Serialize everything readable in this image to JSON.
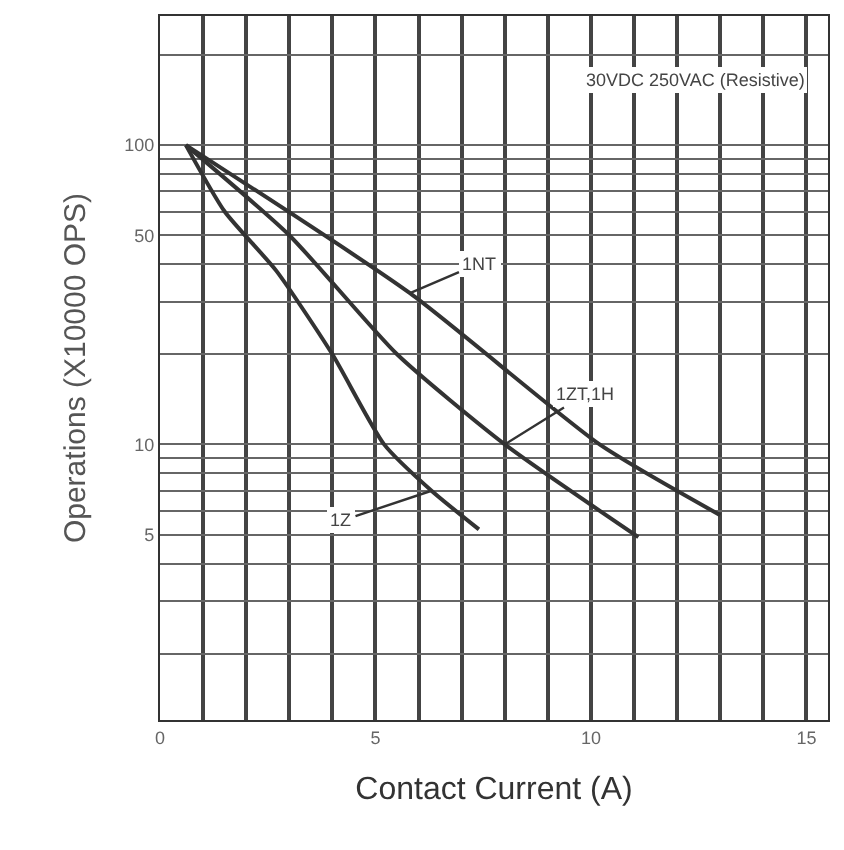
{
  "chart_data": {
    "type": "line",
    "xlabel": "Contact Current (A)",
    "ylabel": "Operations (X10000 OPS)",
    "series": [
      {
        "color": "#333333",
        "x": [
          0.6,
          1.5,
          2.7,
          4.0,
          5.2,
          6.3,
          7.4
        ],
        "values": [
          100,
          60,
          38,
          20,
          10,
          7,
          5.2
        ]
      },
      {
        "color": "#333333",
        "x": [
          0.6,
          3.0,
          5.5,
          8.0,
          11.1
        ],
        "values": [
          100,
          50,
          20,
          10,
          4.9
        ]
      },
      {
        "color": "#333333",
        "x": [
          0.6,
          5.8,
          10.2,
          13.0
        ],
        "values": [
          100,
          32,
          10,
          5.8
        ]
      }
    ],
    "annotations": [
      "30VDC 250VAC (Resistive)",
      {
        "text": "1Z",
        "x": 6.3,
        "y": 7
      },
      {
        "text": "1ZT,1H",
        "x": 8.0,
        "y": 10
      },
      {
        "text": "1NT",
        "x": 5.8,
        "y": 32
      }
    ],
    "log": "y",
    "xlim": [
      0,
      15.5
    ],
    "ylim": [
      1.2,
      270
    ],
    "xticks": [
      0,
      {
        "value": 1,
        "label": null
      },
      {
        "value": 2,
        "label": null
      },
      {
        "value": 3,
        "label": null
      },
      {
        "value": 4,
        "label": null
      },
      5,
      {
        "value": 6,
        "label": null
      },
      {
        "value": 7,
        "label": null
      },
      {
        "value": 8,
        "label": null
      },
      {
        "value": 9,
        "label": null
      },
      10,
      {
        "value": 11,
        "label": null
      },
      {
        "value": 12,
        "label": null
      },
      {
        "value": 13,
        "label": null
      },
      {
        "value": 14,
        "label": null
      },
      15
    ],
    "yticks": [
      {
        "value": 2,
        "label": null
      },
      {
        "value": 3,
        "label": null
      },
      {
        "value": 4,
        "label": null
      },
      5,
      {
        "value": 6,
        "label": null
      },
      {
        "value": 7,
        "label": null
      },
      {
        "value": 8,
        "label": null
      },
      {
        "value": 9,
        "label": null
      },
      10,
      {
        "value": 20,
        "label": null
      },
      {
        "value": 30,
        "label": null
      },
      {
        "value": 40,
        "label": null
      },
      50,
      {
        "value": 60,
        "label": null
      },
      {
        "value": 70,
        "label": null
      },
      {
        "value": 80,
        "label": null
      },
      {
        "value": 90,
        "label": null
      },
      100,
      {
        "value": 200,
        "label": null
      }
    ],
    "grid": true,
    "line_style": "solid",
    "marker": "none"
  }
}
